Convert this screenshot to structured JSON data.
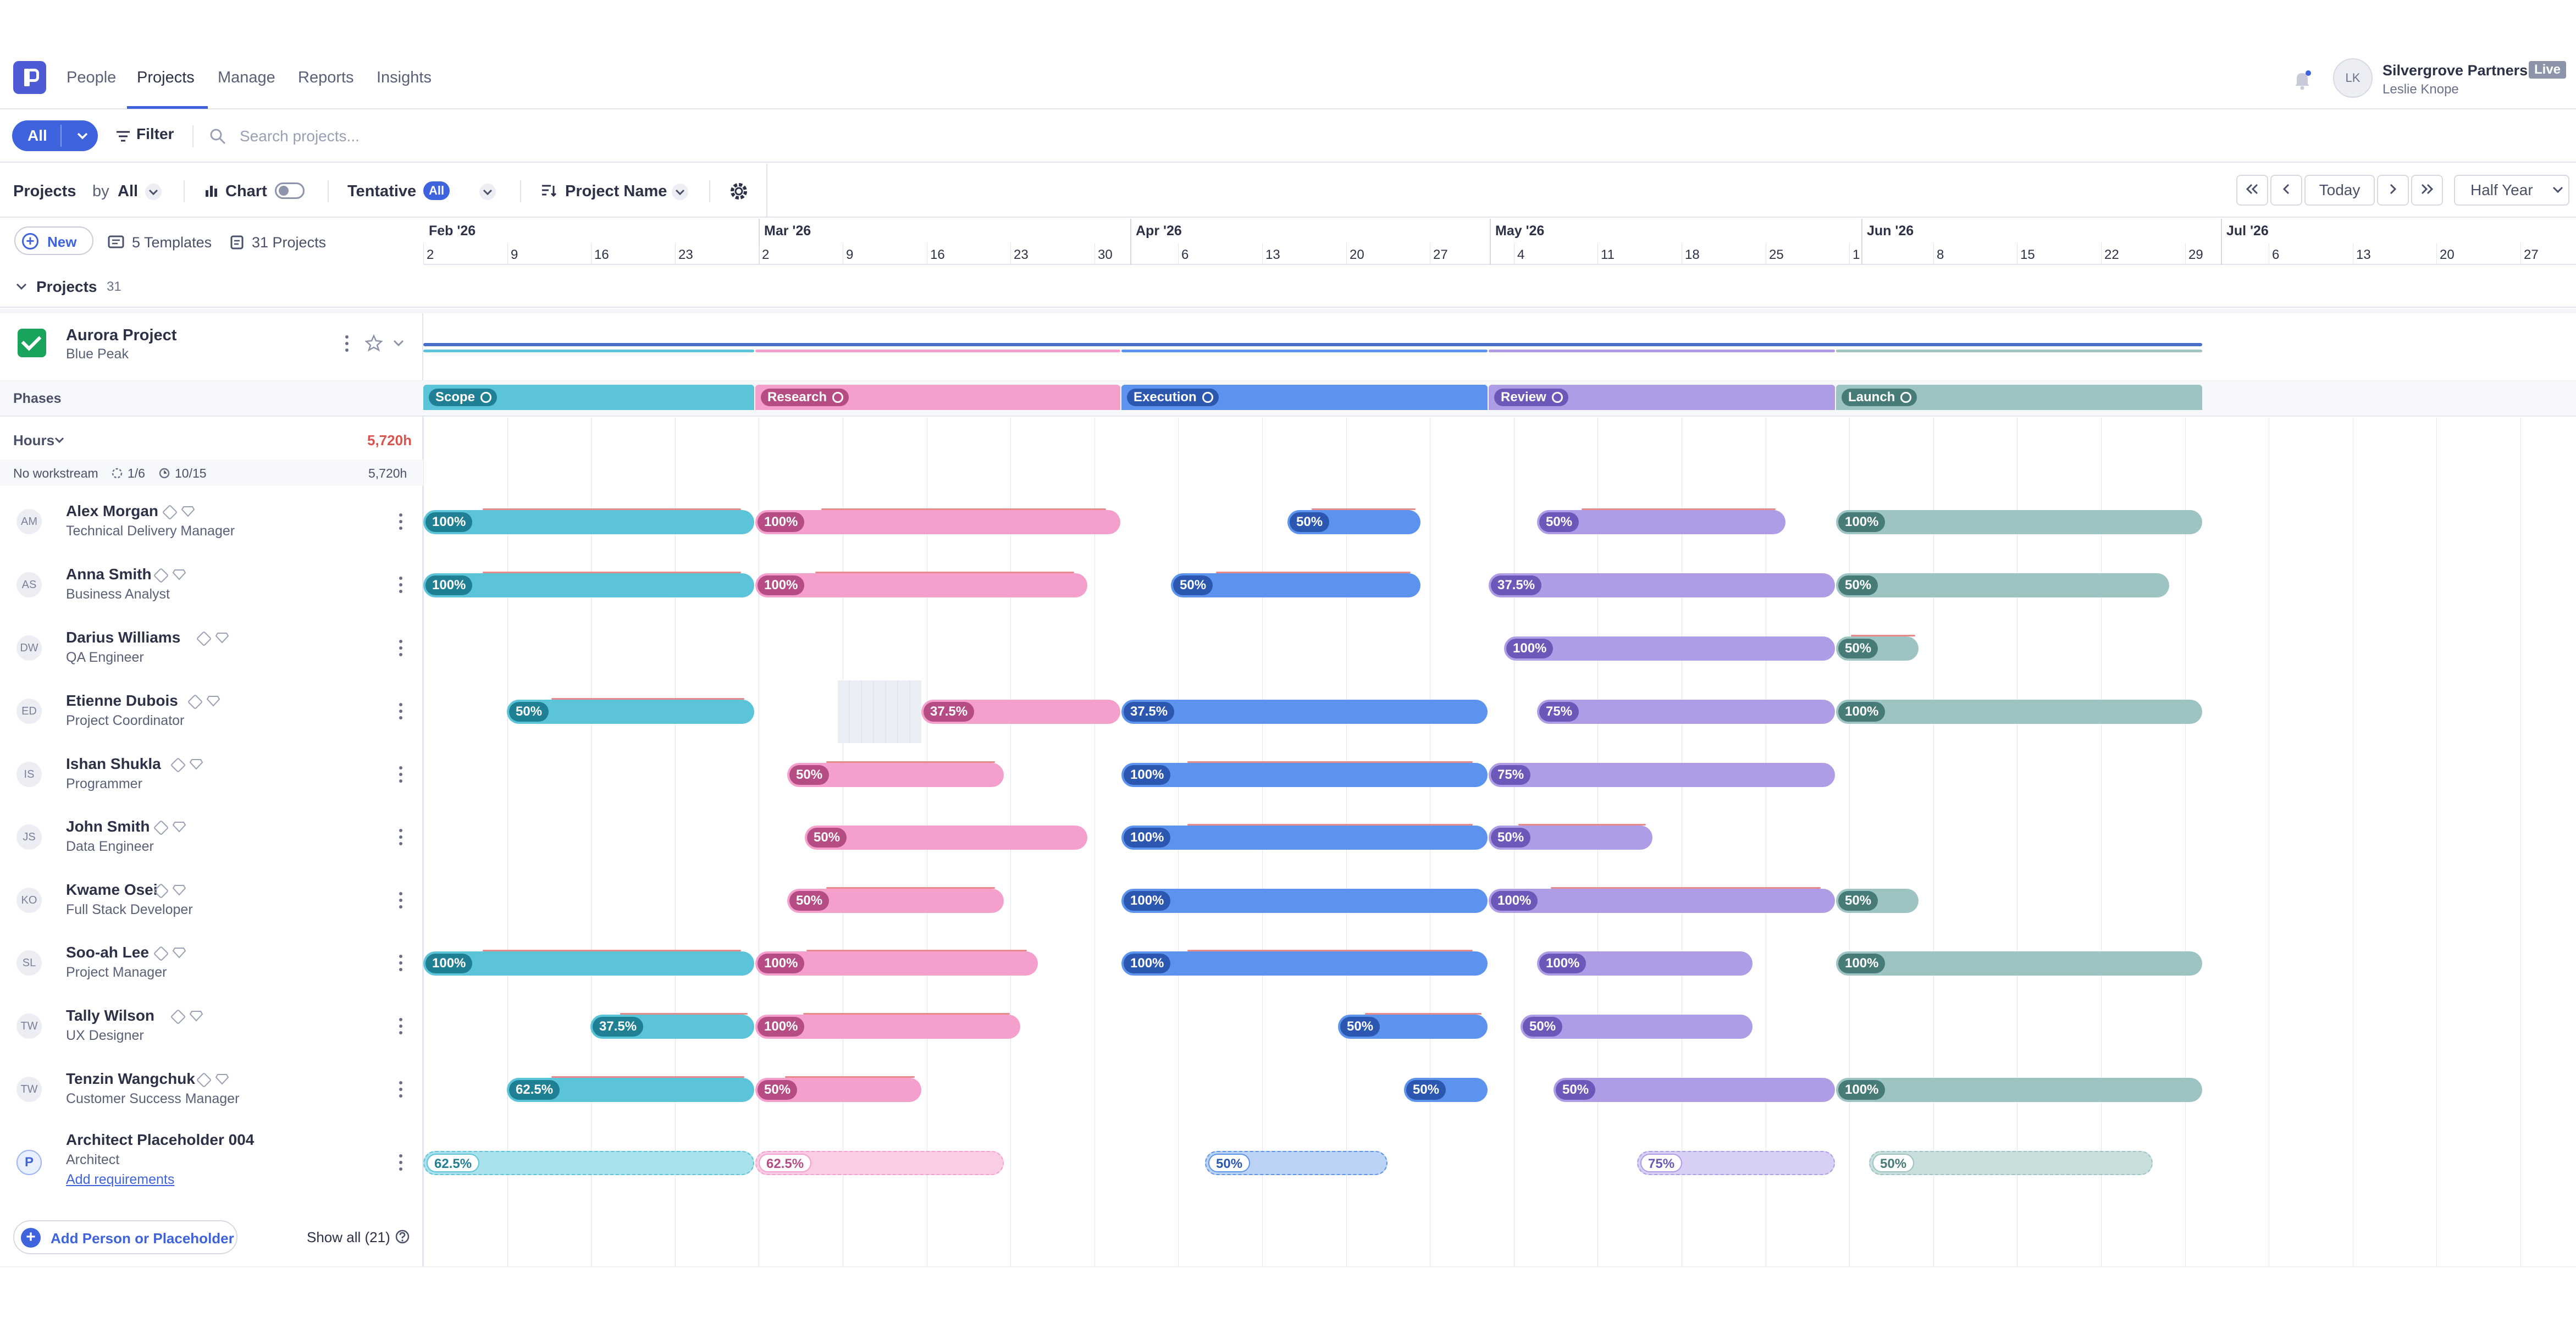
{
  "nav": {
    "links": [
      "People",
      "Projects",
      "Manage",
      "Reports",
      "Insights"
    ],
    "org": "Silvergrove Partners",
    "badge": "Live",
    "user": "Leslie Knope",
    "avatar": "LK"
  },
  "toolbar": {
    "all": "All",
    "filter": "Filter",
    "search_placeholder": "Search projects..."
  },
  "controls": {
    "projects": "Projects",
    "by": "by",
    "by_value": "All",
    "chart": "Chart",
    "tentative": "Tentative",
    "tentative_chip": "All",
    "sort": "Project Name",
    "today": "Today",
    "range": "Half Year"
  },
  "header": {
    "new": "New",
    "templates": "5 Templates",
    "projects_count": "31 Projects"
  },
  "timeline": {
    "months": [
      "Feb '26",
      "Mar '26",
      "Apr '26",
      "May '26",
      "Jun '26",
      "Jul '26"
    ],
    "days": [
      "2",
      "9",
      "16",
      "23",
      "2",
      "9",
      "16",
      "23",
      "30",
      "6",
      "13",
      "20",
      "27",
      "4",
      "11",
      "18",
      "25",
      "1",
      "8",
      "15",
      "22",
      "29",
      "6",
      "13",
      "20",
      "27"
    ]
  },
  "group": {
    "label": "Projects",
    "count": "31"
  },
  "project": {
    "name": "Aurora Project",
    "client": "Blue Peak",
    "phases_label": "Phases",
    "hours_label": "Hours",
    "hours_total": "5,720h",
    "workstream": "No workstream",
    "ws_a": "1/6",
    "ws_b": "10/15",
    "ws_hours": "5,720h"
  },
  "phases": [
    {
      "name": "Scope",
      "color": "#5bc4d9",
      "dark": "#1f7f93"
    },
    {
      "name": "Research",
      "color": "#f59fcc",
      "dark": "#b54d84"
    },
    {
      "name": "Execution",
      "color": "#5b93ee",
      "dark": "#2c57b0"
    },
    {
      "name": "Review",
      "color": "#ae9de6",
      "dark": "#6b58b8"
    },
    {
      "name": "Launch",
      "color": "#9dc4c2",
      "dark": "#467b78"
    }
  ],
  "people": [
    {
      "initials": "AM",
      "name": "Alex Morgan",
      "role": "Technical Delivery Manager"
    },
    {
      "initials": "AS",
      "name": "Anna Smith",
      "role": "Business Analyst"
    },
    {
      "initials": "DW",
      "name": "Darius Williams",
      "role": "QA Engineer"
    },
    {
      "initials": "ED",
      "name": "Etienne Dubois",
      "role": "Project Coordinator"
    },
    {
      "initials": "IS",
      "name": "Ishan Shukla",
      "role": "Programmer"
    },
    {
      "initials": "JS",
      "name": "John Smith",
      "role": "Data Engineer"
    },
    {
      "initials": "KO",
      "name": "Kwame Osei",
      "role": "Full Stack Developer"
    },
    {
      "initials": "SL",
      "name": "Soo-ah Lee",
      "role": "Project Manager"
    },
    {
      "initials": "TW",
      "name": "Tally Wilson",
      "role": "UX Designer"
    },
    {
      "initials": "TW",
      "name": "Tenzin Wangchuk",
      "role": "Customer Success Manager"
    }
  ],
  "placeholder": {
    "initials": "P",
    "name": "Architect Placeholder 004",
    "role": "Architect",
    "link": "Add requirements"
  },
  "assignments": [
    [
      {
        "phase": 0,
        "pct": "100%"
      },
      {
        "phase": 1,
        "pct": "100%"
      },
      {
        "phase": 2,
        "pct": "50%"
      },
      {
        "phase": 3,
        "pct": "50%"
      },
      {
        "phase": 4,
        "pct": "100%"
      }
    ],
    [
      {
        "phase": 0,
        "pct": "100%"
      },
      {
        "phase": 1,
        "pct": "100%"
      },
      {
        "phase": 2,
        "pct": "50%"
      },
      {
        "phase": 3,
        "pct": "37.5%"
      },
      {
        "phase": 4,
        "pct": "50%"
      }
    ],
    [
      {
        "phase": 3,
        "pct": "100%"
      },
      {
        "phase": 4,
        "pct": "50%"
      }
    ],
    [
      {
        "phase": 0,
        "pct": "50%"
      },
      {
        "phase": 1,
        "pct": "37.5%"
      },
      {
        "phase": 2,
        "pct": "37.5%"
      },
      {
        "phase": 3,
        "pct": "75%"
      },
      {
        "phase": 4,
        "pct": "100%"
      }
    ],
    [
      {
        "phase": 1,
        "pct": "50%"
      },
      {
        "phase": 2,
        "pct": "100%"
      },
      {
        "phase": 3,
        "pct": "75%"
      }
    ],
    [
      {
        "phase": 1,
        "pct": "50%"
      },
      {
        "phase": 2,
        "pct": "100%"
      },
      {
        "phase": 3,
        "pct": "50%"
      }
    ],
    [
      {
        "phase": 1,
        "pct": "50%"
      },
      {
        "phase": 2,
        "pct": "100%"
      },
      {
        "phase": 3,
        "pct": "100%"
      },
      {
        "phase": 4,
        "pct": "50%"
      }
    ],
    [
      {
        "phase": 0,
        "pct": "100%"
      },
      {
        "phase": 1,
        "pct": "100%"
      },
      {
        "phase": 2,
        "pct": "100%"
      },
      {
        "phase": 3,
        "pct": "100%"
      },
      {
        "phase": 4,
        "pct": "100%"
      }
    ],
    [
      {
        "phase": 0,
        "pct": "37.5%"
      },
      {
        "phase": 1,
        "pct": "100%"
      },
      {
        "phase": 2,
        "pct": "50%"
      },
      {
        "phase": 3,
        "pct": "50%"
      }
    ],
    [
      {
        "phase": 0,
        "pct": "62.5%"
      },
      {
        "phase": 1,
        "pct": "50%"
      },
      {
        "phase": 2,
        "pct": "50%"
      },
      {
        "phase": 3,
        "pct": "50%"
      },
      {
        "phase": 4,
        "pct": "100%"
      }
    ]
  ],
  "placeholder_assignments": [
    {
      "phase": 0,
      "pct": "62.5%"
    },
    {
      "phase": 1,
      "pct": "62.5%"
    },
    {
      "phase": 2,
      "pct": "50%"
    },
    {
      "phase": 3,
      "pct": "75%"
    },
    {
      "phase": 4,
      "pct": "50%"
    }
  ],
  "footer": {
    "add": "Add Person or Placeholder",
    "show_all": "Show all (21)"
  }
}
